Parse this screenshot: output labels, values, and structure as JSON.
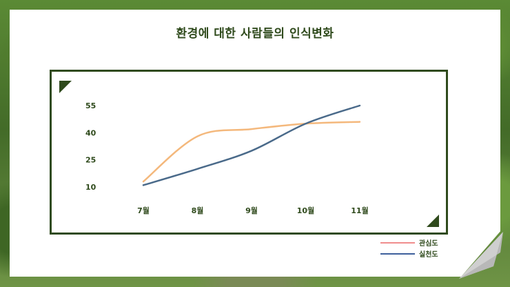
{
  "title": "환경에 대한 사람들의 인식변화",
  "colors": {
    "frame": "#2f4a1c",
    "text": "#2f4a1c",
    "series_interest": "#f4b87c",
    "series_practice": "#4a6a8a",
    "legend_interest": "#f08c8c",
    "legend_practice": "#3e5f9c"
  },
  "chart_data": {
    "type": "line",
    "title": "환경에 대한 사람들의 인식변화",
    "categories": [
      "7월",
      "8월",
      "9월",
      "10월",
      "11월"
    ],
    "y_ticks": [
      10,
      25,
      40,
      55
    ],
    "ylim": [
      10,
      55
    ],
    "grid": false,
    "legend_position": "bottom-right",
    "series": [
      {
        "name": "관심도",
        "values": [
          13,
          38,
          42,
          45,
          46
        ]
      },
      {
        "name": "실천도",
        "values": [
          11,
          20,
          30,
          45,
          55
        ]
      }
    ]
  }
}
